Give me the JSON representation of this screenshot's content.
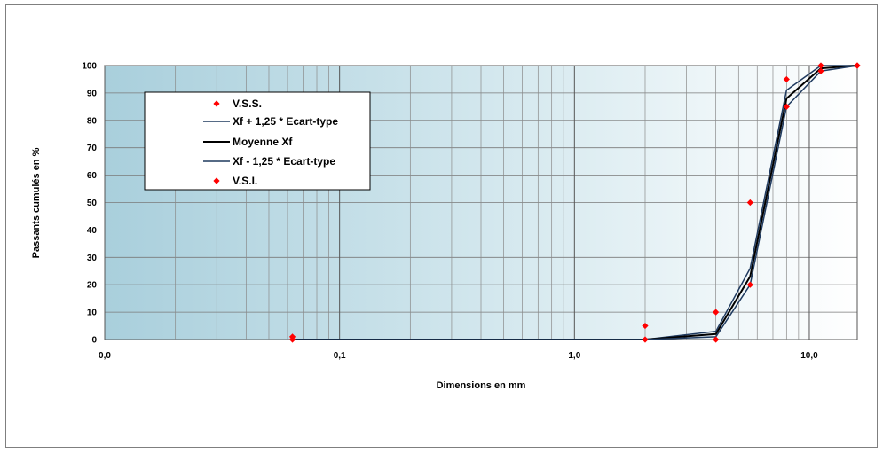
{
  "chart_data": {
    "type": "line",
    "title": "",
    "xlabel": "Dimensions en mm",
    "ylabel": "Passants cumulés en %",
    "x_scale": "log",
    "xlim": [
      0.01,
      16
    ],
    "ylim": [
      0,
      100
    ],
    "x_ticks": [
      {
        "value": 0.01,
        "label": "0,0"
      },
      {
        "value": 0.1,
        "label": "0,1"
      },
      {
        "value": 1,
        "label": "1,0"
      },
      {
        "value": 10,
        "label": "10,0"
      }
    ],
    "y_ticks": [
      0,
      10,
      20,
      30,
      40,
      50,
      60,
      70,
      80,
      90,
      100
    ],
    "grid": true,
    "legend_position": "top-left",
    "series": [
      {
        "name": "V.S.S.",
        "kind": "marker",
        "color": "#ff0000",
        "x": [
          0.063,
          2,
          4,
          5.6,
          8,
          11.2,
          16
        ],
        "y": [
          1,
          5,
          10,
          50,
          95,
          100,
          100
        ]
      },
      {
        "name": "Xf + 1,25 * Ecart-type",
        "kind": "line",
        "color": "#1f3a5f",
        "x": [
          0.063,
          2,
          4,
          5.6,
          8,
          11.2,
          16
        ],
        "y": [
          0,
          0,
          3,
          26,
          91,
          100,
          100
        ]
      },
      {
        "name": "Moyenne Xf",
        "kind": "line",
        "color": "#000000",
        "x": [
          0.063,
          2,
          4,
          5.6,
          8,
          11.2,
          16
        ],
        "y": [
          0,
          0,
          2,
          23,
          88,
          99,
          100
        ]
      },
      {
        "name": "Xf - 1,25 * Ecart-type",
        "kind": "line",
        "color": "#1f3a5f",
        "x": [
          0.063,
          2,
          4,
          5.6,
          8,
          11.2,
          16
        ],
        "y": [
          0,
          0,
          1,
          20,
          85,
          98,
          100
        ]
      },
      {
        "name": "V.S.I.",
        "kind": "marker",
        "color": "#ff0000",
        "x": [
          0.063,
          2,
          4,
          5.6,
          8,
          11.2,
          16
        ],
        "y": [
          0,
          0,
          0,
          20,
          85,
          98,
          100
        ]
      }
    ]
  }
}
